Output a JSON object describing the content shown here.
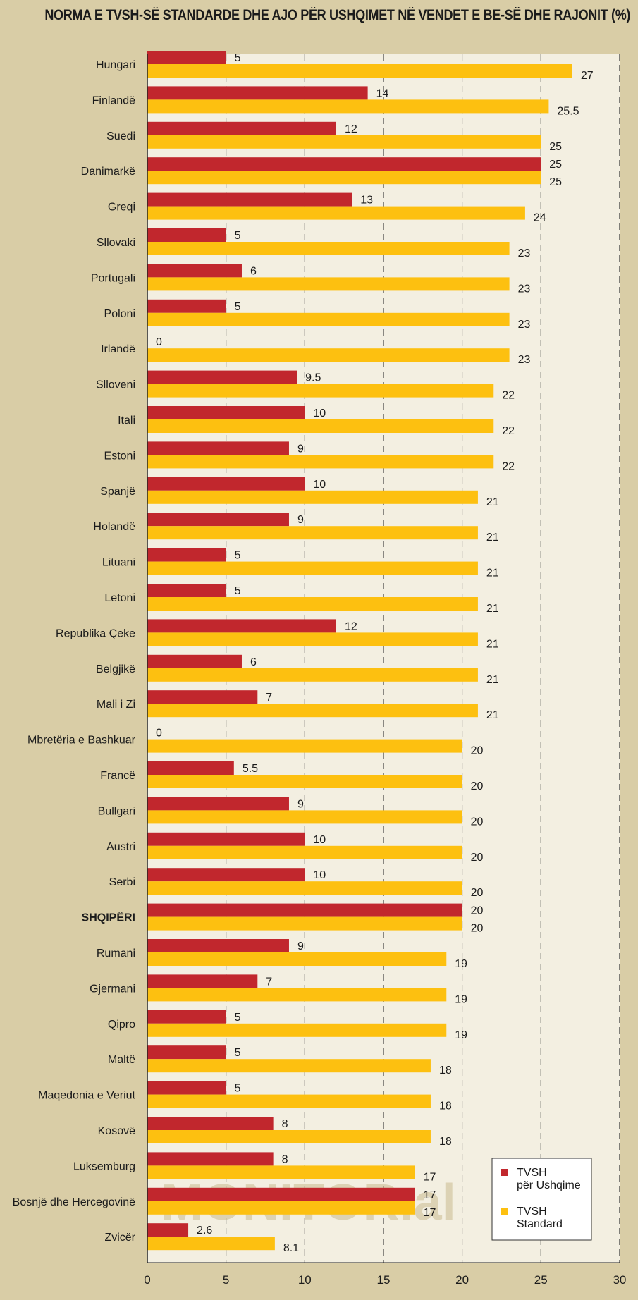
{
  "chart_data": {
    "type": "bar",
    "orientation": "horizontal",
    "title": "NORMA E TVSH-SË STANDARDE DHE AJO PËR USHQIMET NË VENDET E BE-SË DHE RAJONIT (%)",
    "categories": [
      "Hungari",
      "Finlandë",
      "Suedi",
      "Danimarkë",
      "Greqi",
      "Sllovaki",
      "Portugali",
      "Poloni",
      "Irlandë",
      "Slloveni",
      "Itali",
      "Estoni",
      "Spanjë",
      "Holandë",
      "Lituani",
      "Letoni",
      "Republika Çeke",
      "Belgjikë",
      "Mali i Zi",
      "Mbretëria e Bashkuar",
      "Francë",
      "Bullgari",
      "Austri",
      "Serbi",
      "SHQIPËRI",
      "Rumani",
      "Gjermani",
      "Qipro",
      "Maltë",
      "Maqedonia e Veriut",
      "Kosovë",
      "Luksemburg",
      "Bosnjë dhe Hercegovinë",
      "Zvicër"
    ],
    "highlight_category": "SHQIPËRI",
    "series": [
      {
        "name": "TVSH për Ushqime",
        "color": "#c1272d",
        "values": [
          5,
          14,
          12,
          25,
          13,
          5,
          6,
          5,
          0,
          9.5,
          10,
          9,
          10,
          9,
          5,
          5,
          12,
          6,
          7,
          0,
          5.5,
          9,
          10,
          10,
          20,
          9,
          7,
          5,
          5,
          5,
          8,
          8,
          17,
          2.6
        ],
        "labels": [
          "5",
          "14",
          "12",
          "25",
          "13",
          "5",
          "6",
          "5",
          "0",
          "9.5",
          "10",
          "9",
          "10",
          "9",
          "5",
          "5",
          "12",
          "6",
          "7",
          "0",
          "5.5",
          "9",
          "10",
          "10",
          "20",
          "9",
          "7",
          "5",
          "5",
          "5",
          "8",
          "8",
          "17",
          "2.6"
        ]
      },
      {
        "name": "TVSH Standard",
        "color": "#fdc010",
        "values": [
          27,
          25.5,
          25,
          25,
          24,
          23,
          23,
          23,
          23,
          22,
          22,
          22,
          21,
          21,
          21,
          21,
          21,
          21,
          21,
          20,
          20,
          20,
          20,
          20,
          20,
          19,
          19,
          19,
          18,
          18,
          18,
          17,
          17,
          8.1
        ],
        "labels": [
          "27",
          "25.5",
          "25",
          "25",
          "24",
          "23",
          "23",
          "23",
          "23",
          "22",
          "22",
          "22",
          "21",
          "21",
          "21",
          "21",
          "21",
          "21",
          "21",
          "20",
          "20",
          "20",
          "20",
          "20",
          "20",
          "19",
          "19",
          "19",
          "18",
          "18",
          "18",
          "17",
          "17",
          "8.1"
        ]
      }
    ],
    "xlim": [
      0,
      30
    ],
    "xticks": [
      0,
      5,
      10,
      15,
      20,
      25,
      30
    ],
    "xtick_labels": [
      "0",
      "5",
      "10",
      "15",
      "20",
      "25",
      "30"
    ],
    "grid": "vertical dashed",
    "legend": {
      "position": "bottom-right",
      "items": [
        {
          "lines": [
            "TVSH",
            "për Ushqime"
          ],
          "color": "#c1272d"
        },
        {
          "lines": [
            "TVSH",
            "Standard"
          ],
          "color": "#fdc010"
        }
      ]
    },
    "watermark": "MONITOR.al"
  },
  "colors": {
    "background": "#d9cda6",
    "plot_background": "#f3efe1",
    "food_bar": "#c1272d",
    "standard_bar": "#fdc010",
    "grid": "#333333"
  }
}
